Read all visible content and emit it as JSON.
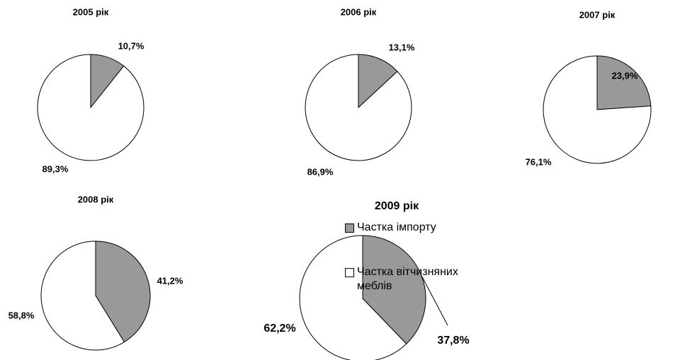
{
  "chart_data": [
    {
      "type": "pie",
      "title": "2005 рік",
      "values": [
        10.7,
        89.3
      ],
      "value_labels": [
        "10,7%",
        "89,3%"
      ]
    },
    {
      "type": "pie",
      "title": "2006 рік",
      "values": [
        13.1,
        86.9
      ],
      "value_labels": [
        "13,1%",
        "86,9%"
      ]
    },
    {
      "type": "pie",
      "title": "2007 рік",
      "values": [
        23.9,
        76.1
      ],
      "value_labels": [
        "23,9%",
        "76,1%"
      ]
    },
    {
      "type": "pie",
      "title": "2008 рік",
      "values": [
        41.2,
        58.8
      ],
      "value_labels": [
        "41,2%",
        "58,8%"
      ]
    },
    {
      "type": "pie",
      "title": "2009 рік",
      "values": [
        37.8,
        62.2
      ],
      "value_labels": [
        "37,8%",
        "62,2%"
      ]
    }
  ],
  "legend": {
    "labels": [
      "Частка імпорту",
      "Частка вітчизняних меблів"
    ],
    "colors": [
      "#999999",
      "#ffffff"
    ]
  }
}
